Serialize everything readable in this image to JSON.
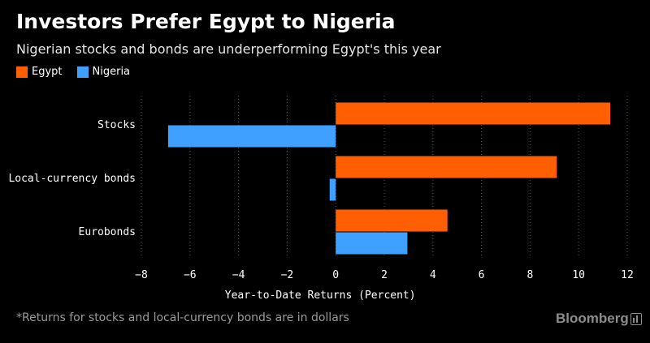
{
  "title": "Investors Prefer Egypt to Nigeria",
  "subtitle": "Nigerian stocks and bonds are underperforming Egypt's this year",
  "footnote": "*Returns for stocks and local-currency bonds are in dollars",
  "logo": {
    "text": "Bloomberg",
    "icon": "bloomberg-mark-icon"
  },
  "colors": {
    "background": "#000000",
    "egypt": "#ff5f00",
    "nigeria": "#3fa0ff",
    "grid": "#555555",
    "text": "#ffffff"
  },
  "chart_data": {
    "type": "bar",
    "orientation": "horizontal",
    "categories": [
      "Stocks",
      "Local-currency bonds",
      "Eurobonds"
    ],
    "series": [
      {
        "name": "Egypt",
        "color": "#ff5f00",
        "values": [
          11.3,
          9.1,
          4.6
        ]
      },
      {
        "name": "Nigeria",
        "color": "#3fa0ff",
        "values": [
          -6.9,
          -0.25,
          2.95
        ]
      }
    ],
    "xlabel": "Year-to-Date Returns (Percent)",
    "xlim": [
      -8,
      12
    ],
    "xticks": [
      -8,
      -6,
      -4,
      -2,
      0,
      2,
      4,
      6,
      8,
      10,
      12
    ],
    "grid": "vertical dotted",
    "legend": "top-left"
  }
}
